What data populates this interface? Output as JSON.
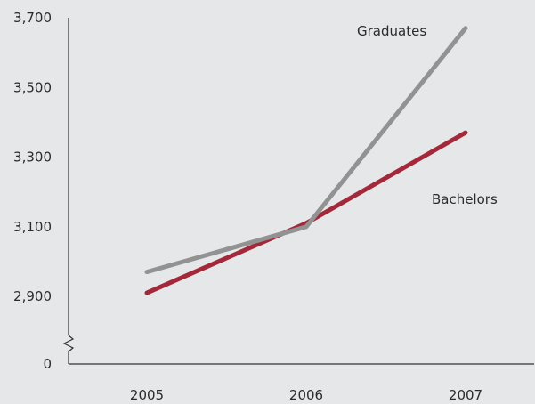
{
  "chart_data": {
    "type": "line",
    "title": "",
    "xlabel": "",
    "ylabel": "",
    "categories": [
      "2005",
      "2006",
      "2007"
    ],
    "y_ticks": [
      "0",
      "2,900",
      "3,100",
      "3,300",
      "3,500",
      "3,700"
    ],
    "ylim": [
      2900,
      3700
    ],
    "y_axis_break": true,
    "grid": false,
    "legend": "none (series labelled inline)",
    "series": [
      {
        "name": "Graduates",
        "values": [
          2970,
          3100,
          3670
        ],
        "color": "#929292"
      },
      {
        "name": "Bachelors",
        "values": [
          2910,
          3110,
          3370
        ],
        "color": "#a3283a"
      }
    ]
  }
}
